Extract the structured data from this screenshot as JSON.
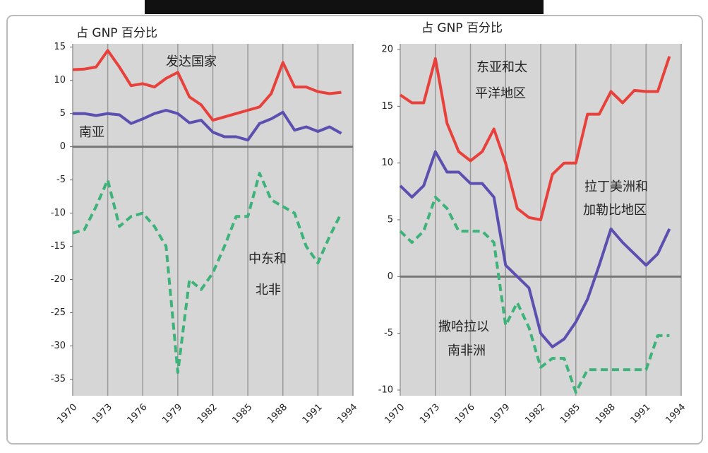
{
  "chart_data": [
    {
      "type": "line",
      "ylabel": "占 GNP 百分比",
      "x": [
        1970,
        1971,
        1972,
        1973,
        1974,
        1975,
        1976,
        1977,
        1978,
        1979,
        1980,
        1981,
        1982,
        1983,
        1984,
        1985,
        1986,
        1987,
        1988,
        1989,
        1990,
        1991,
        1992,
        1993
      ],
      "xlim": [
        1970,
        1994
      ],
      "xticks": [
        1970,
        1973,
        1976,
        1979,
        1982,
        1985,
        1988,
        1991,
        1994
      ],
      "ylim": [
        -37.5,
        15.5
      ],
      "yticks": [
        15,
        10,
        5,
        0,
        -5,
        -10,
        -15,
        -20,
        -25,
        -30,
        -35
      ],
      "grid": "x",
      "series": [
        {
          "name": "发达国家",
          "color": "#e8403a",
          "line_style": "solid",
          "values": [
            11.6,
            11.7,
            12,
            14.5,
            12,
            9.2,
            9.5,
            9,
            10.3,
            11.2,
            7.5,
            6.3,
            4,
            4.5,
            5,
            5.5,
            6,
            8,
            12.7,
            9,
            9,
            8.3,
            8,
            8.2
          ]
        },
        {
          "name": "南亚",
          "color": "#5b4fb0",
          "line_style": "solid",
          "values": [
            5,
            5,
            4.7,
            5,
            4.8,
            3.5,
            4.2,
            5,
            5.5,
            5,
            3.6,
            4,
            2.2,
            1.5,
            1.5,
            1,
            3.5,
            4.2,
            5.2,
            2.5,
            3,
            2.3,
            3,
            2
          ]
        },
        {
          "name": "中东和北非",
          "color": "#3db37a",
          "line_style": "dashed",
          "values": [
            -13,
            -12.5,
            -9,
            -5,
            -12,
            -10.5,
            -10,
            -12,
            -15,
            -34,
            -20,
            -21.5,
            -19,
            -15,
            -10.5,
            -10.5,
            -4,
            -8,
            -9,
            -10,
            -15,
            -17.5,
            -13.5,
            -10
          ]
        }
      ],
      "annotations": [
        "发达国家",
        "南亚",
        "中东和",
        "北非"
      ]
    },
    {
      "type": "line",
      "ylabel": "占 GNP 百分比",
      "x": [
        1970,
        1971,
        1972,
        1973,
        1974,
        1975,
        1976,
        1977,
        1978,
        1979,
        1980,
        1981,
        1982,
        1983,
        1984,
        1985,
        1986,
        1987,
        1988,
        1989,
        1990,
        1991,
        1992,
        1993
      ],
      "xlim": [
        1970,
        1994
      ],
      "xticks": [
        1970,
        1973,
        1976,
        1979,
        1982,
        1985,
        1988,
        1991,
        1994
      ],
      "ylim": [
        -10.5,
        20.5
      ],
      "yticks": [
        20,
        15,
        10,
        5,
        0,
        -5,
        -10
      ],
      "grid": "x",
      "series": [
        {
          "name": "东亚和太平洋地区",
          "color": "#e8403a",
          "line_style": "solid",
          "values": [
            16,
            15.3,
            15.3,
            19.2,
            13.5,
            11,
            10.2,
            11,
            13,
            10,
            6,
            5.2,
            5,
            9,
            10,
            10,
            14.3,
            14.3,
            16.3,
            15.3,
            16.4,
            16.3,
            16.3,
            19.4
          ]
        },
        {
          "name": "拉丁美洲和加勒比地区",
          "color": "#5b4fb0",
          "line_style": "solid",
          "values": [
            8,
            7,
            8,
            11,
            9.2,
            9.2,
            8.2,
            8.2,
            7,
            1,
            0,
            -1,
            -5,
            -6.2,
            -5.5,
            -4,
            -2,
            1,
            4.2,
            3,
            2,
            1,
            2,
            4.2
          ]
        },
        {
          "name": "撒哈拉以南非洲",
          "color": "#3db37a",
          "line_style": "dashed",
          "values": [
            4,
            3,
            4,
            7,
            6,
            4,
            4,
            4,
            3,
            -4.3,
            -2.3,
            -4.5,
            -8,
            -7.2,
            -7.2,
            -10.2,
            -8.2,
            -8.2,
            -8.2,
            -8.2,
            -8.2,
            -8.2,
            -5.2,
            -5.2
          ]
        }
      ],
      "annotations": [
        "东亚和太",
        "平洋地区",
        "拉丁美洲和",
        "加勒比地区",
        "撒哈拉以",
        "南非洲"
      ]
    }
  ]
}
